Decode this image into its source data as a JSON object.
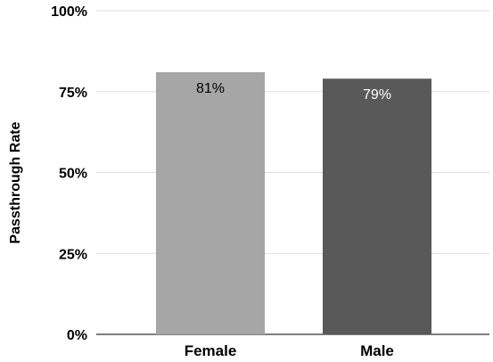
{
  "chart_data": {
    "type": "bar",
    "categories": [
      "Female",
      "Male"
    ],
    "values": [
      81,
      79
    ],
    "data_labels": [
      "81%",
      "79%"
    ],
    "ylabel": "Passthrough Rate",
    "xlabel": "",
    "ylim": [
      0,
      100
    ],
    "yticks": [
      "0%",
      "25%",
      "50%",
      "75%",
      "100%"
    ],
    "ytick_values": [
      0,
      25,
      50,
      75,
      100
    ],
    "grid": true,
    "colors": [
      "#a6a6a6",
      "#595959"
    ],
    "label_colors": [
      "#000000",
      "#ffffff"
    ]
  }
}
